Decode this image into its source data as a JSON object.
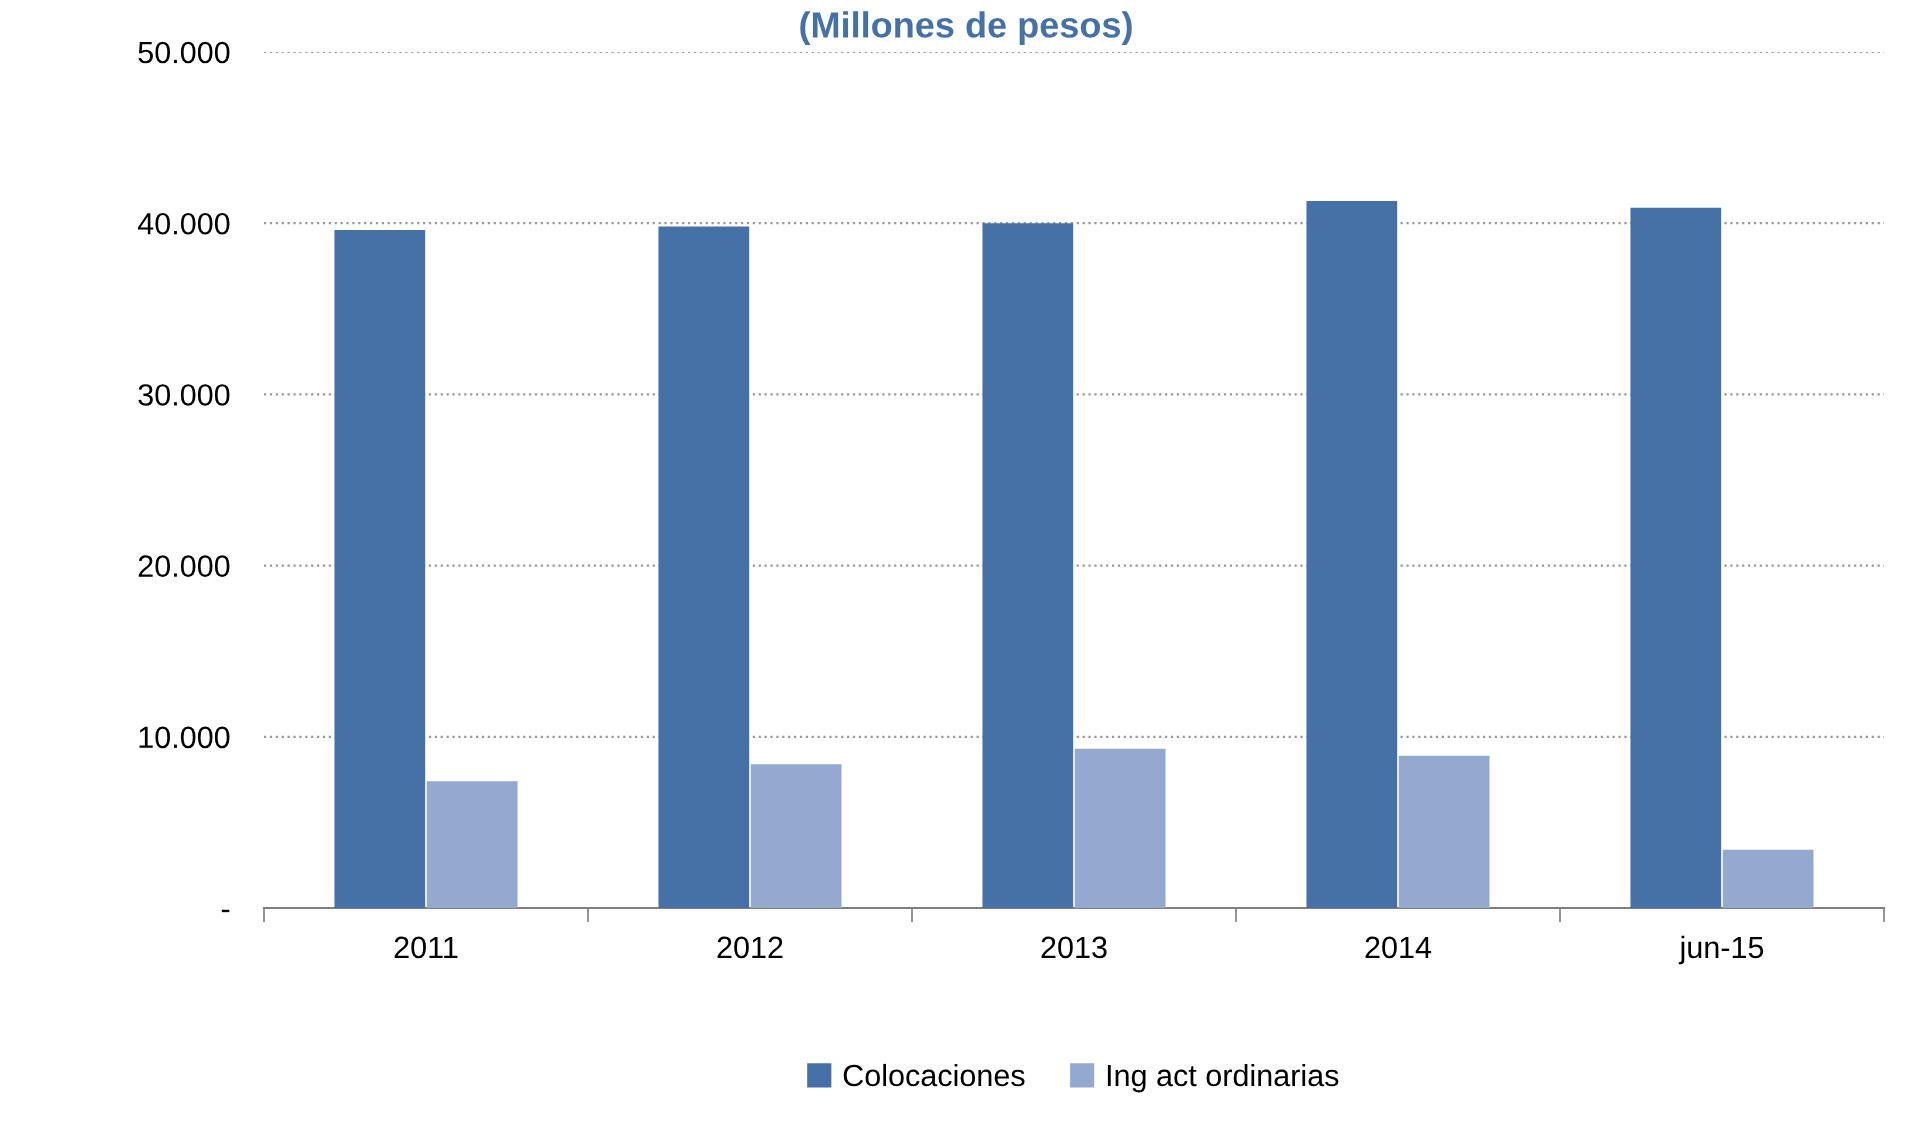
{
  "chart_data": {
    "type": "bar",
    "title": "(Millones de pesos)",
    "categories": [
      "2011",
      "2012",
      "2013",
      "2014",
      "jun-15"
    ],
    "series": [
      {
        "name": "Colocaciones",
        "color": "#4571a7",
        "values": [
          39600,
          39800,
          40000,
          41300,
          40900
        ]
      },
      {
        "name": "Ing act ordinarias",
        "color": "#93a9cf",
        "values": [
          7400,
          8400,
          9300,
          8900,
          3400
        ]
      }
    ],
    "ylim": [
      0,
      50000
    ],
    "yticks": [
      {
        "value": 0,
        "label": "-"
      },
      {
        "value": 10000,
        "label": "10.000"
      },
      {
        "value": 20000,
        "label": "20.000"
      },
      {
        "value": 30000,
        "label": "30.000"
      },
      {
        "value": 40000,
        "label": "40.000"
      },
      {
        "value": 50000,
        "label": "50.000"
      }
    ],
    "grid": "y",
    "legend": "bottom"
  }
}
